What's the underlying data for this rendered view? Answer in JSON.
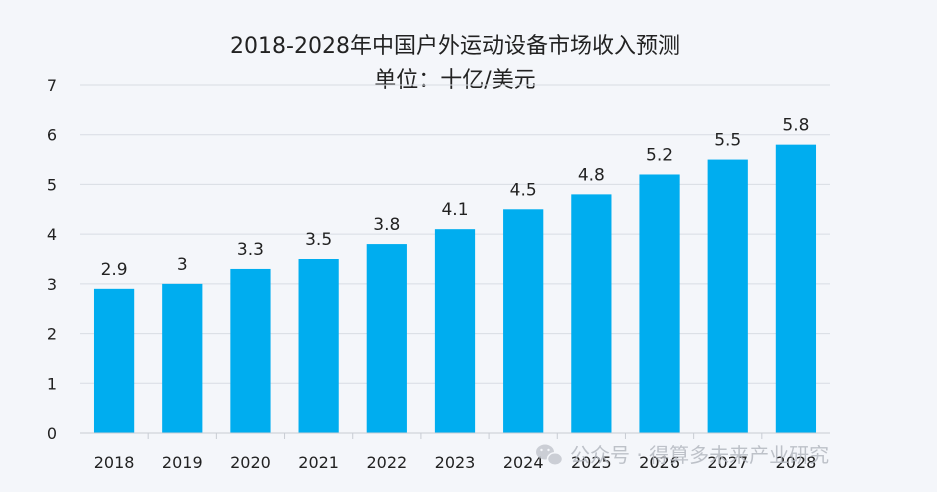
{
  "chart_data": {
    "type": "bar",
    "title": "2018-2028年中国户外运动设备市场收入预测",
    "subtitle": "单位：十亿/美元",
    "categories": [
      "2018",
      "2019",
      "2020",
      "2021",
      "2022",
      "2023",
      "2024",
      "2025",
      "2026",
      "2027",
      "2028"
    ],
    "values": [
      2.9,
      3,
      3.3,
      3.5,
      3.8,
      4.1,
      4.5,
      4.8,
      5.2,
      5.5,
      5.8
    ],
    "value_labels": [
      "2.9",
      "3",
      "3.3",
      "3.5",
      "3.8",
      "4.1",
      "4.5",
      "4.8",
      "5.2",
      "5.5",
      "5.8"
    ],
    "ylim": [
      0,
      7
    ],
    "yticks": [
      "0",
      "1",
      "2",
      "3",
      "4",
      "5",
      "6",
      "7"
    ],
    "grid": true,
    "bar_color": "#00adef",
    "xlabel": "",
    "ylabel": ""
  },
  "watermark": {
    "text": "公众号 · 得算多未来产业研究",
    "icon": "wechat-icon"
  }
}
